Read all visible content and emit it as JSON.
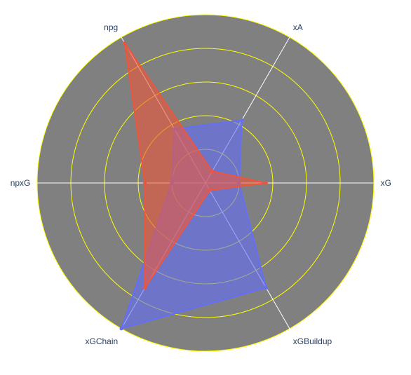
{
  "chart_data": {
    "type": "radar",
    "axes": [
      "xG",
      "xA",
      "npg",
      "npxG",
      "xGChain",
      "xGBuildup"
    ],
    "range": [
      0,
      1
    ],
    "radial_ticks": [
      0.2,
      0.4,
      0.6,
      0.8,
      1.0
    ],
    "grid": true,
    "background_color": "#808080",
    "gridline_color": "#ffff00",
    "spoke_color": "#ffffff",
    "series": [
      {
        "color": "#636efa",
        "fill_color": "rgba(99,110,250,0.6)",
        "values": [
          0.2,
          0.43,
          0.37,
          0.2,
          1.0,
          0.72
        ]
      },
      {
        "color": "#ef553b",
        "fill_color": "rgba(239,85,59,0.6)",
        "values": [
          0.36,
          0.08,
          0.96,
          0.36,
          0.72,
          0.05
        ]
      }
    ]
  }
}
